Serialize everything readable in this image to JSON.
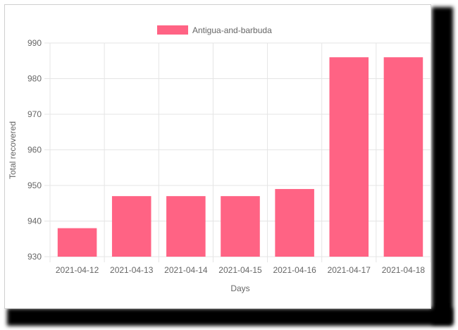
{
  "colors": {
    "bar_fill": "#ff6384",
    "grid": "#e5e5e5",
    "text": "#666666"
  },
  "chart_data": {
    "type": "bar",
    "categories": [
      "2021-04-12",
      "2021-04-13",
      "2021-04-14",
      "2021-04-15",
      "2021-04-16",
      "2021-04-17",
      "2021-04-18"
    ],
    "series": [
      {
        "name": "Antigua-and-barbuda",
        "values": [
          938,
          947,
          947,
          947,
          949,
          986,
          986
        ]
      }
    ],
    "xlabel": "Days",
    "ylabel": "Total recovered",
    "ylim": [
      930,
      990
    ],
    "yticks": [
      930,
      940,
      950,
      960,
      970,
      980,
      990
    ],
    "grid": true,
    "legend": "top-center"
  }
}
